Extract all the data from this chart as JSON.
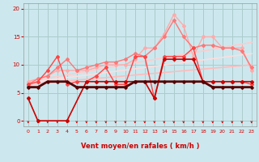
{
  "bg_color": "#cce8ee",
  "grid_color": "#aacccc",
  "xlabel": "Vent moyen/en rafales ( km/h )",
  "xlabel_color": "#cc0000",
  "tick_color": "#cc0000",
  "xlim": [
    -0.5,
    23.5
  ],
  "ylim": [
    -1,
    21
  ],
  "yticks": [
    0,
    5,
    10,
    15,
    20
  ],
  "xticks": [
    0,
    1,
    2,
    3,
    4,
    5,
    6,
    7,
    8,
    9,
    10,
    11,
    12,
    13,
    14,
    15,
    16,
    17,
    18,
    19,
    20,
    21,
    22,
    23
  ],
  "series": [
    {
      "x": [
        0,
        1,
        4,
        6,
        7,
        8,
        9,
        10,
        11,
        12,
        13,
        14,
        15,
        16,
        17,
        18,
        19,
        20,
        21,
        22,
        23
      ],
      "y": [
        4,
        0,
        0,
        7,
        7,
        7,
        7,
        7,
        7,
        7,
        4,
        11,
        11,
        11,
        11,
        7,
        7,
        7,
        7,
        7,
        7
      ],
      "color": "#cc0000",
      "lw": 1.2,
      "marker": "D",
      "ms": 2.0,
      "zorder": 5
    },
    {
      "x": [
        0,
        1,
        2,
        3,
        4,
        5,
        6,
        7,
        8,
        9,
        10,
        11,
        12,
        13,
        14,
        15,
        16,
        17,
        18,
        19,
        20,
        21,
        22,
        23
      ],
      "y": [
        6,
        6,
        7,
        7,
        7,
        6,
        6,
        6,
        6,
        6,
        6,
        7,
        7,
        7,
        7,
        7,
        7,
        7,
        7,
        6,
        6,
        6,
        6,
        6
      ],
      "color": "#550000",
      "lw": 2.0,
      "marker": "D",
      "ms": 1.8,
      "zorder": 6
    },
    {
      "x": [
        0,
        1,
        2,
        3,
        4,
        5,
        6,
        7,
        8,
        9,
        10,
        11,
        12,
        13,
        14,
        15,
        16,
        17,
        18,
        19,
        20,
        21,
        22,
        23
      ],
      "y": [
        6.5,
        7,
        9,
        11.5,
        6.5,
        7,
        7,
        8,
        9.5,
        6.5,
        6.5,
        11.5,
        11.5,
        4,
        11.5,
        11.5,
        11.5,
        13,
        7,
        7,
        7,
        7,
        7,
        6.5
      ],
      "color": "#ff4444",
      "lw": 1.0,
      "marker": "D",
      "ms": 2.0,
      "zorder": 4
    },
    {
      "x": [
        0,
        1,
        2,
        3,
        4,
        5,
        6,
        7,
        8,
        9,
        10,
        11,
        12,
        13,
        14,
        15,
        16,
        17,
        18,
        19,
        20,
        21,
        22,
        23
      ],
      "y": [
        7,
        7.5,
        8,
        9,
        9,
        9,
        9,
        9.5,
        10,
        10,
        10,
        11,
        13,
        13,
        15.5,
        19,
        17,
        11.5,
        15,
        15,
        13,
        13,
        13,
        9
      ],
      "color": "#ffaaaa",
      "lw": 1.0,
      "marker": "D",
      "ms": 2.0,
      "zorder": 3
    },
    {
      "x": [
        0,
        1,
        2,
        3,
        4,
        5,
        6,
        7,
        8,
        9,
        10,
        11,
        12,
        13,
        14,
        15,
        16,
        17,
        18,
        19,
        20,
        21,
        22,
        23
      ],
      "y": [
        6.5,
        7.5,
        8,
        9.5,
        11,
        9,
        9.5,
        10,
        10.5,
        10.5,
        11,
        12,
        11.5,
        13,
        15,
        18,
        15,
        13,
        13.5,
        13.5,
        13,
        13,
        12.5,
        9.5
      ],
      "color": "#ff7777",
      "lw": 1.0,
      "marker": "D",
      "ms": 2.0,
      "zorder": 3
    },
    {
      "x": [
        0,
        23
      ],
      "y": [
        6.5,
        10.0
      ],
      "color": "#ffbbbb",
      "lw": 1.2,
      "marker": null,
      "ms": 0,
      "zorder": 2
    },
    {
      "x": [
        0,
        23
      ],
      "y": [
        7.0,
        14.0
      ],
      "color": "#ffcccc",
      "lw": 1.2,
      "marker": null,
      "ms": 0,
      "zorder": 2
    },
    {
      "x": [
        0,
        23
      ],
      "y": [
        6.8,
        12.0
      ],
      "color": "#ffdddd",
      "lw": 1.2,
      "marker": null,
      "ms": 0,
      "zorder": 2
    }
  ],
  "figsize": [
    3.2,
    2.0
  ],
  "dpi": 100
}
